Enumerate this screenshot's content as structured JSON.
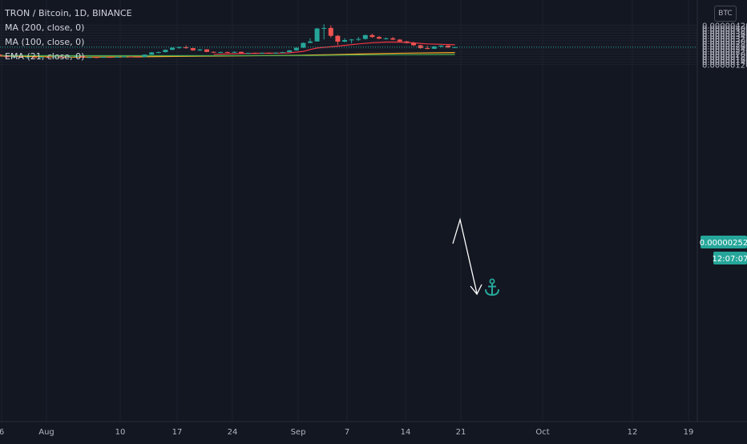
{
  "legend": {
    "title": "TRON / Bitcoin, 1D, BINANCE",
    "ma200": "MA (200, close, 0)",
    "ma100": "MA (100, close, 0)",
    "ema21": "EMA (21, close, 0)"
  },
  "currency": "BTC",
  "colors": {
    "background": "#131722",
    "up": "#26a69a",
    "down": "#ef5350",
    "ema21": "#f23645",
    "ma100": "#ffa726",
    "ma200": "#4caf50",
    "grid": "#1e222d",
    "axis_text": "#b2b5be",
    "current_price_badge": "#26a69a",
    "annotation_arrow": "#ffffff",
    "anchor_icon": "#26a69a"
  },
  "price_axis": {
    "ticks": [
      1.2e-06,
      1.4e-06,
      1.6e-06,
      1.8e-06,
      2e-06,
      2.2e-06,
      2.4e-06,
      2.6e-06,
      2.8e-06,
      3e-06,
      3.2e-06,
      3.4e-06,
      3.6e-06,
      3.8e-06,
      4e-06,
      4.2e-06
    ],
    "labels": [
      "0.00000120",
      "0.00000140",
      "0.00000160",
      "0.00000180",
      "0.00000200",
      "0.00000220",
      "0.00000240",
      "0.00000260",
      "0.00000280",
      "0.00000300",
      "0.00000320",
      "0.00000340",
      "0.00000360",
      "0.00000380",
      "0.00000400",
      "0.00000420"
    ]
  },
  "time_axis": {
    "labels": [
      "6",
      "Aug",
      "10",
      "17",
      "24",
      "Sep",
      "7",
      "14",
      "21",
      "Oct",
      "12",
      "19"
    ]
  },
  "current_price": {
    "value": 2.52e-06,
    "label": "0.00000252",
    "countdown": "12:07:07"
  },
  "icons": [
    "anchor-icon"
  ],
  "chart_data": {
    "type": "candlestick",
    "title": "TRON / Bitcoin, 1D, BINANCE",
    "ylim": [
      1.18e-06,
      4.28e-06
    ],
    "x_labels": [
      "6",
      "Aug",
      "10",
      "17",
      "24",
      "Sep",
      "7",
      "14",
      "21",
      "Oct",
      "12",
      "19"
    ],
    "candles": [
      {
        "o": 1.95e-06,
        "h": 1.99e-06,
        "l": 1.82e-06,
        "c": 1.87e-06
      },
      {
        "o": 1.87e-06,
        "h": 1.9e-06,
        "l": 1.73e-06,
        "c": 1.75e-06
      },
      {
        "o": 1.75e-06,
        "h": 1.82e-06,
        "l": 1.72e-06,
        "c": 1.79e-06
      },
      {
        "o": 1.79e-06,
        "h": 1.82e-06,
        "l": 1.74e-06,
        "c": 1.75e-06
      },
      {
        "o": 1.75e-06,
        "h": 1.78e-06,
        "l": 1.72e-06,
        "c": 1.76e-06
      },
      {
        "o": 1.76e-06,
        "h": 1.79e-06,
        "l": 1.73e-06,
        "c": 1.74e-06
      },
      {
        "o": 1.74e-06,
        "h": 1.78e-06,
        "l": 1.71e-06,
        "c": 1.77e-06
      },
      {
        "o": 1.77e-06,
        "h": 1.8e-06,
        "l": 1.74e-06,
        "c": 1.76e-06
      },
      {
        "o": 1.76e-06,
        "h": 1.83e-06,
        "l": 1.71e-06,
        "c": 1.8e-06
      },
      {
        "o": 1.8e-06,
        "h": 1.82e-06,
        "l": 1.67e-06,
        "c": 1.77e-06
      },
      {
        "o": 1.77e-06,
        "h": 1.83e-06,
        "l": 1.74e-06,
        "c": 1.82e-06
      },
      {
        "o": 1.82e-06,
        "h": 1.85e-06,
        "l": 1.79e-06,
        "c": 1.84e-06
      },
      {
        "o": 1.84e-06,
        "h": 1.86e-06,
        "l": 1.73e-06,
        "c": 1.75e-06
      },
      {
        "o": 1.75e-06,
        "h": 1.8e-06,
        "l": 1.72e-06,
        "c": 1.76e-06
      },
      {
        "o": 1.76e-06,
        "h": 1.78e-06,
        "l": 1.68e-06,
        "c": 1.74e-06
      },
      {
        "o": 1.74e-06,
        "h": 1.78e-06,
        "l": 1.72e-06,
        "c": 1.77e-06
      },
      {
        "o": 1.77e-06,
        "h": 1.79e-06,
        "l": 1.72e-06,
        "c": 1.75e-06
      },
      {
        "o": 1.75e-06,
        "h": 1.8e-06,
        "l": 1.73e-06,
        "c": 1.78e-06
      },
      {
        "o": 1.78e-06,
        "h": 1.83e-06,
        "l": 1.76e-06,
        "c": 1.81e-06
      },
      {
        "o": 1.81e-06,
        "h": 1.83e-06,
        "l": 1.77e-06,
        "c": 1.79e-06
      },
      {
        "o": 1.79e-06,
        "h": 1.84e-06,
        "l": 1.75e-06,
        "c": 1.77e-06
      },
      {
        "o": 1.77e-06,
        "h": 1.96e-06,
        "l": 1.75e-06,
        "c": 1.95e-06
      },
      {
        "o": 1.95e-06,
        "h": 2.15e-06,
        "l": 1.93e-06,
        "c": 2.12e-06
      },
      {
        "o": 2.12e-06,
        "h": 2.18e-06,
        "l": 2.05e-06,
        "c": 2.14e-06
      },
      {
        "o": 2.14e-06,
        "h": 2.34e-06,
        "l": 2.12e-06,
        "c": 2.32e-06
      },
      {
        "o": 2.32e-06,
        "h": 2.51e-06,
        "l": 2.29e-06,
        "c": 2.48e-06
      },
      {
        "o": 2.48e-06,
        "h": 2.57e-06,
        "l": 2.4e-06,
        "c": 2.52e-06
      },
      {
        "o": 2.52e-06,
        "h": 2.65e-06,
        "l": 2.4e-06,
        "c": 2.45e-06
      },
      {
        "o": 2.45e-06,
        "h": 2.47e-06,
        "l": 2.25e-06,
        "c": 2.28e-06
      },
      {
        "o": 2.28e-06,
        "h": 2.38e-06,
        "l": 2.22e-06,
        "c": 2.35e-06
      },
      {
        "o": 2.35e-06,
        "h": 2.37e-06,
        "l": 2.14e-06,
        "c": 2.16e-06
      },
      {
        "o": 2.16e-06,
        "h": 2.2e-06,
        "l": 2.09e-06,
        "c": 2.11e-06
      },
      {
        "o": 2.11e-06,
        "h": 2.18e-06,
        "l": 2.08e-06,
        "c": 2.14e-06
      },
      {
        "o": 2.14e-06,
        "h": 2.18e-06,
        "l": 2.1e-06,
        "c": 2.11e-06
      },
      {
        "o": 2.11e-06,
        "h": 2.19e-06,
        "l": 2.08e-06,
        "c": 2.16e-06
      },
      {
        "o": 2.16e-06,
        "h": 2.18e-06,
        "l": 2.04e-06,
        "c": 2.06e-06
      },
      {
        "o": 2.06e-06,
        "h": 2.11e-06,
        "l": 2.04e-06,
        "c": 2.08e-06
      },
      {
        "o": 2.08e-06,
        "h": 2.1e-06,
        "l": 2.01e-06,
        "c": 2.04e-06
      },
      {
        "o": 2.04e-06,
        "h": 2.1e-06,
        "l": 2.02e-06,
        "c": 2.09e-06
      },
      {
        "o": 2.09e-06,
        "h": 2.11e-06,
        "l": 2.03e-06,
        "c": 2.05e-06
      },
      {
        "o": 2.05e-06,
        "h": 2.12e-06,
        "l": 2.03e-06,
        "c": 2.1e-06
      },
      {
        "o": 2.1e-06,
        "h": 2.16e-06,
        "l": 2.08e-06,
        "c": 2.14e-06
      },
      {
        "o": 2.14e-06,
        "h": 2.3e-06,
        "l": 2.13e-06,
        "c": 2.28e-06
      },
      {
        "o": 2.28e-06,
        "h": 2.5e-06,
        "l": 2.26e-06,
        "c": 2.48e-06
      },
      {
        "o": 2.48e-06,
        "h": 2.88e-06,
        "l": 2.46e-06,
        "c": 2.85e-06
      },
      {
        "o": 2.85e-06,
        "h": 3.2e-06,
        "l": 2.83e-06,
        "c": 2.96e-06
      },
      {
        "o": 2.96e-06,
        "h": 4e-06,
        "l": 2.95e-06,
        "c": 3.95e-06
      },
      {
        "o": 3.95e-06,
        "h": 4.28e-06,
        "l": 3.11e-06,
        "c": 3.99e-06
      },
      {
        "o": 3.99e-06,
        "h": 4.19e-06,
        "l": 3.26e-06,
        "c": 3.39e-06
      },
      {
        "o": 3.39e-06,
        "h": 3.46e-06,
        "l": 2.69e-06,
        "c": 2.94e-06
      },
      {
        "o": 2.94e-06,
        "h": 3.21e-06,
        "l": 2.89e-06,
        "c": 3.07e-06
      },
      {
        "o": 3.07e-06,
        "h": 3.15e-06,
        "l": 2.82e-06,
        "c": 3.11e-06
      },
      {
        "o": 3.11e-06,
        "h": 3.3e-06,
        "l": 3e-06,
        "c": 3.15e-06
      },
      {
        "o": 3.15e-06,
        "h": 3.47e-06,
        "l": 3.1e-06,
        "c": 3.45e-06
      },
      {
        "o": 3.45e-06,
        "h": 3.55e-06,
        "l": 3.25e-06,
        "c": 3.3e-06
      },
      {
        "o": 3.3e-06,
        "h": 3.38e-06,
        "l": 3.14e-06,
        "c": 3.17e-06
      },
      {
        "o": 3.17e-06,
        "h": 3.27e-06,
        "l": 3.1e-06,
        "c": 3.2e-06
      },
      {
        "o": 3.2e-06,
        "h": 3.3e-06,
        "l": 3.06e-06,
        "c": 3.1e-06
      },
      {
        "o": 3.1e-06,
        "h": 3.14e-06,
        "l": 2.9e-06,
        "c": 2.96e-06
      },
      {
        "o": 2.96e-06,
        "h": 3e-06,
        "l": 2.8e-06,
        "c": 2.85e-06
      },
      {
        "o": 2.85e-06,
        "h": 2.92e-06,
        "l": 2.62e-06,
        "c": 2.67e-06
      },
      {
        "o": 2.67e-06,
        "h": 2.71e-06,
        "l": 2.4e-06,
        "c": 2.45e-06
      },
      {
        "o": 2.45e-06,
        "h": 2.62e-06,
        "l": 2.36e-06,
        "c": 2.4e-06
      },
      {
        "o": 2.4e-06,
        "h": 2.62e-06,
        "l": 2.38e-06,
        "c": 2.57e-06
      },
      {
        "o": 2.57e-06,
        "h": 2.67e-06,
        "l": 2.5e-06,
        "c": 2.64e-06
      },
      {
        "o": 2.64e-06,
        "h": 2.68e-06,
        "l": 2.46e-06,
        "c": 2.5e-06
      },
      {
        "o": 2.5e-06,
        "h": 2.55e-06,
        "l": 2.46e-06,
        "c": 2.52e-06
      }
    ],
    "series": [
      {
        "name": "EMA (21, close, 0)",
        "values": [
          [
            31,
            1.97e-06
          ],
          [
            33,
            2e-06
          ],
          [
            35,
            2.03e-06
          ],
          [
            37,
            2.05e-06
          ],
          [
            39,
            2.06e-06
          ],
          [
            41,
            2.07e-06
          ],
          [
            42,
            2.09e-06
          ],
          [
            44,
            2.2e-06
          ],
          [
            45,
            2.34e-06
          ],
          [
            46,
            2.46e-06
          ],
          [
            48,
            2.55e-06
          ],
          [
            50,
            2.66e-06
          ],
          [
            52,
            2.77e-06
          ],
          [
            54,
            2.86e-06
          ],
          [
            56,
            2.91e-06
          ],
          [
            58,
            2.91e-06
          ],
          [
            60,
            2.85e-06
          ],
          [
            62,
            2.77e-06
          ],
          [
            64,
            2.74e-06
          ],
          [
            66,
            2.7e-06
          ]
        ]
      },
      {
        "name": "MA (100, close, 0)",
        "values": [
          [
            0,
            1.85e-06
          ],
          [
            10,
            1.76e-06
          ],
          [
            20,
            1.78e-06
          ],
          [
            30,
            1.84e-06
          ],
          [
            40,
            1.88e-06
          ],
          [
            44,
            1.91e-06
          ],
          [
            48,
            1.95e-06
          ],
          [
            52,
            2e-06
          ],
          [
            56,
            2.04e-06
          ],
          [
            60,
            2.07e-06
          ],
          [
            66,
            2.11e-06
          ]
        ]
      },
      {
        "name": "MA (200, close, 0)",
        "values": [
          [
            0,
            1.88e-06
          ],
          [
            10,
            1.87e-06
          ],
          [
            20,
            1.87e-06
          ],
          [
            30,
            1.87e-06
          ],
          [
            40,
            1.88e-06
          ],
          [
            46,
            1.89e-06
          ],
          [
            50,
            1.92e-06
          ],
          [
            56,
            1.94e-06
          ],
          [
            66,
            1.96e-06
          ]
        ]
      }
    ],
    "annotation_arrow": [
      [
        66,
        2.52e-06
      ],
      [
        67,
        2.7e-06
      ],
      [
        69,
        2.1e-06
      ]
    ]
  }
}
